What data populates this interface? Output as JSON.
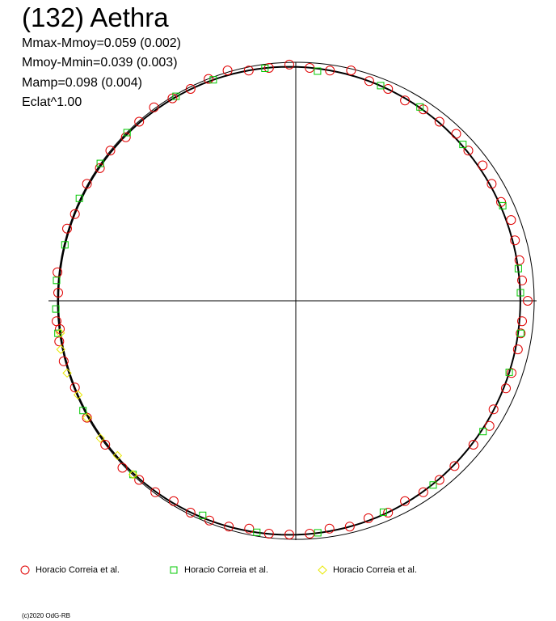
{
  "title": "(132) Aethra",
  "stats": [
    "Mmax-Mmoy=0.059 (0.002)",
    "Mmoy-Mmin=0.039 (0.003)",
    "Mamp=0.098 (0.004)",
    "Eclat^1.00"
  ],
  "legend": [
    {
      "label": "Horacio Correia et al.",
      "marker": "circle",
      "color": "#e00000"
    },
    {
      "label": "Horacio Correia et al.",
      "marker": "square",
      "color": "#00c800"
    },
    {
      "label": "Horacio Correia et al.",
      "marker": "diamond",
      "color": "#e8e800"
    }
  ],
  "copyright": "(c)2020 OdG-RB",
  "chart_data": {
    "type": "scatter",
    "projection": "polar",
    "radial_range": [
      0,
      1
    ],
    "reference_circle_radius": 1,
    "series": [
      {
        "name": "Horacio Correia et al.",
        "marker": "circle",
        "color": "#e00000",
        "angle_deg": [
          265,
          272,
          277,
          288,
          292,
          300,
          305,
          310,
          315,
          320,
          325,
          330,
          335,
          340,
          345,
          350,
          355,
          0,
          5,
          10,
          15,
          20,
          25,
          30,
          35,
          40,
          45,
          50,
          55,
          60,
          65,
          70,
          75,
          80,
          85,
          90,
          95,
          98,
          102,
          108,
          112,
          118,
          122,
          128,
          135,
          140,
          145,
          150,
          155,
          160,
          165,
          170,
          175,
          180,
          185,
          190,
          195,
          200,
          205,
          210,
          215,
          220,
          225,
          232,
          240,
          248,
          255,
          260,
          263
        ],
        "radius": [
          0.98,
          0.97,
          0.98,
          0.98,
          0.97,
          0.98,
          0.97,
          0.98,
          0.97,
          0.98,
          0.99,
          0.98,
          0.98,
          0.99,
          1.0,
          0.98,
          0.98,
          0.99,
          0.98,
          0.98,
          1.0,
          0.98,
          0.98,
          0.97,
          0.98,
          0.98,
          0.99,
          0.98,
          0.99,
          0.98,
          0.98,
          0.99,
          0.98,
          0.98,
          0.98,
          1.0,
          0.98,
          0.98,
          0.98,
          0.98,
          0.98,
          0.97,
          0.99,
          0.98,
          0.98,
          0.98,
          0.98,
          0.97,
          0.98,
          0.97,
          0.98,
          0.97,
          0.98,
          0.98,
          0.98,
          0.97,
          0.98,
          0.98,
          0.98,
          0.97,
          0.98,
          0.98,
          0.99,
          0.98,
          0.98,
          0.97,
          0.98,
          0.98,
          0.97
        ]
      },
      {
        "name": "Horacio Correia et al.",
        "marker": "square",
        "color": "#00c800",
        "angle_deg": [
          268,
          275,
          284,
          296,
          306,
          316,
          331,
          341,
          354,
          7,
          23,
          34,
          48,
          66,
          82,
          88,
          98,
          108,
          124,
          142,
          156,
          173,
          188,
          202,
          222,
          242,
          262
        ],
        "radius": [
          0.98,
          0.98,
          0.97,
          0.98,
          0.98,
          0.98,
          0.98,
          0.98,
          0.98,
          0.97,
          0.98,
          0.98,
          0.98,
          0.98,
          0.97,
          0.97,
          0.98,
          0.97,
          0.98,
          0.98,
          0.97,
          0.98,
          0.98,
          0.97,
          0.98,
          0.98,
          0.98
        ]
      },
      {
        "name": "Horacio Correia et al.",
        "marker": "diamond",
        "color": "#e8e800",
        "angle_deg": [
          222,
          228,
          234,
          240,
          246,
          252,
          258,
          262
        ],
        "radius": [
          0.98,
          0.97,
          0.98,
          0.98,
          0.97,
          0.98,
          0.98,
          0.97
        ]
      }
    ]
  }
}
